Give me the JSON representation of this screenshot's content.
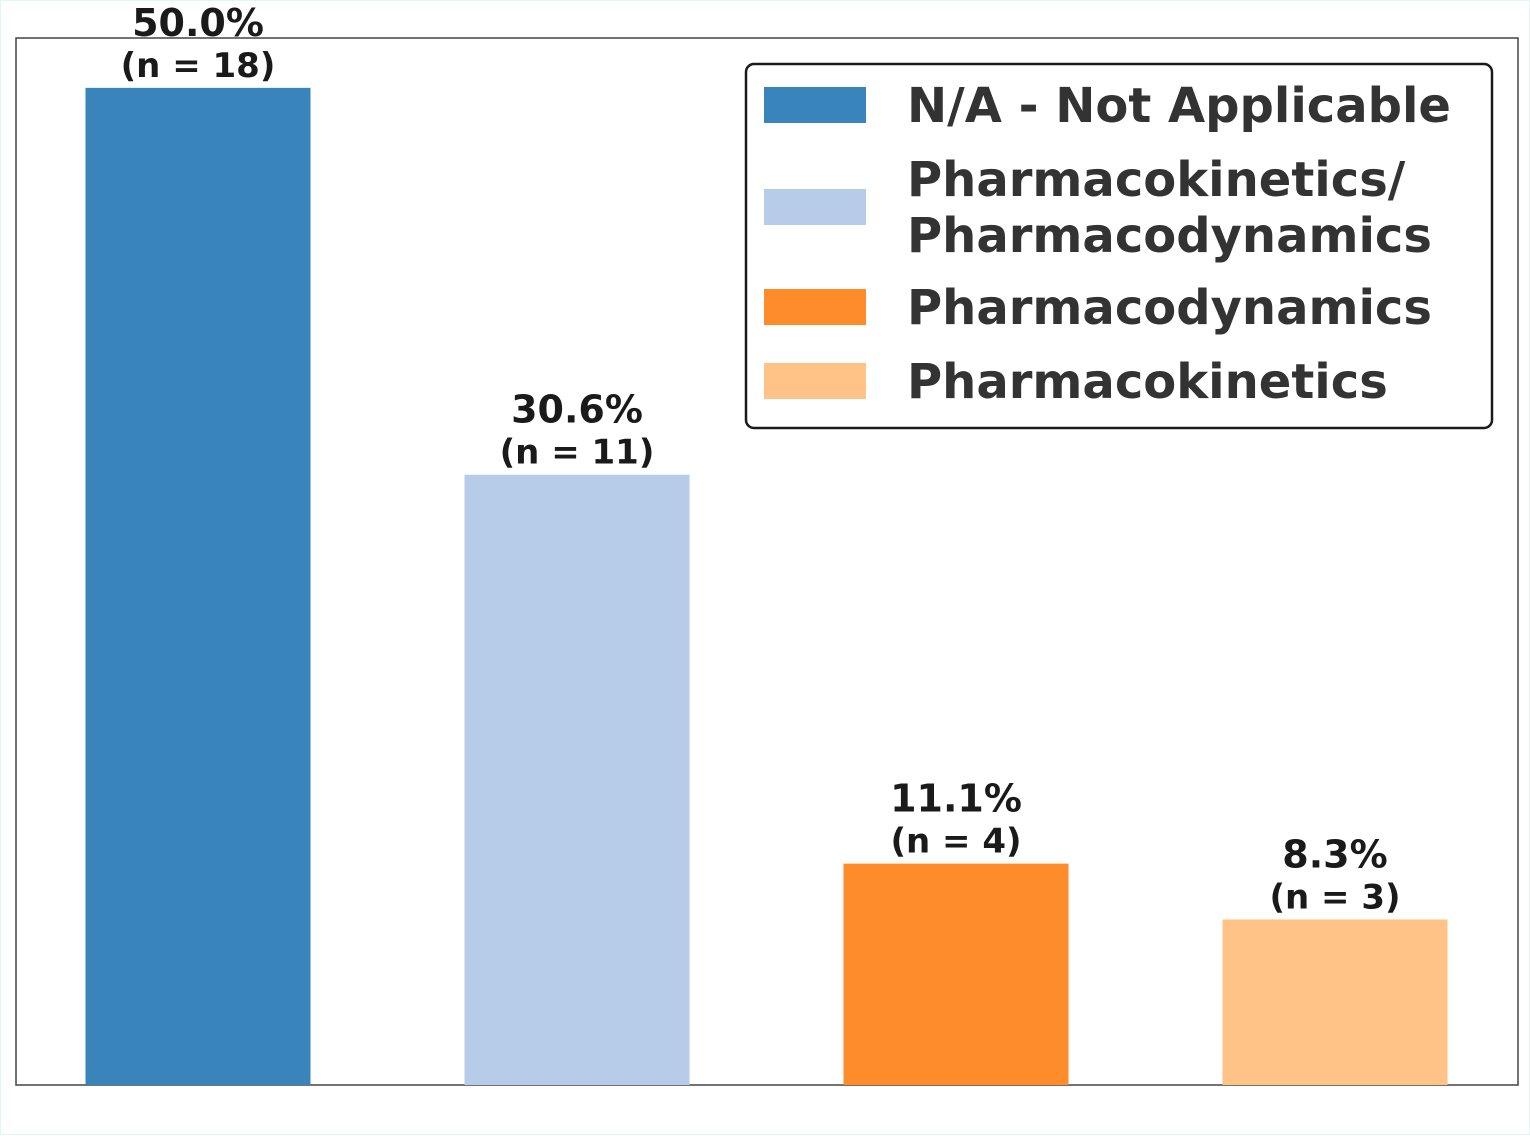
{
  "chart_data": {
    "type": "bar",
    "title": "",
    "xlabel": "",
    "ylabel": "",
    "categories": [
      "N/A - Not Applicable",
      "Pharmacokinetics/\nPharmacodynamics",
      "Pharmacodynamics",
      "Pharmacokinetics"
    ],
    "values": [
      50.0,
      30.6,
      11.1,
      8.3
    ],
    "counts": [
      18,
      11,
      4,
      3
    ],
    "value_labels": [
      "50.0%",
      "30.6%",
      "11.1%",
      "8.3%"
    ],
    "count_labels": [
      "(n = 18)",
      "(n = 11)",
      "(n = 4)",
      "(n = 3)"
    ],
    "colors": [
      "#3a84bc",
      "#b7cce8",
      "#ff8c2a",
      "#ffc287"
    ],
    "ylim": [
      0,
      52.5
    ],
    "grid": false,
    "legend": {
      "placement": "top-right",
      "entries": [
        {
          "lines": [
            "N/A - Not Applicable"
          ],
          "color": "#3a84bc"
        },
        {
          "lines": [
            "Pharmacokinetics/",
            "Pharmacodynamics"
          ],
          "color": "#b7cce8"
        },
        {
          "lines": [
            "Pharmacodynamics"
          ],
          "color": "#ff8c2a"
        },
        {
          "lines": [
            "Pharmacokinetics"
          ],
          "color": "#ffc287"
        }
      ]
    }
  }
}
